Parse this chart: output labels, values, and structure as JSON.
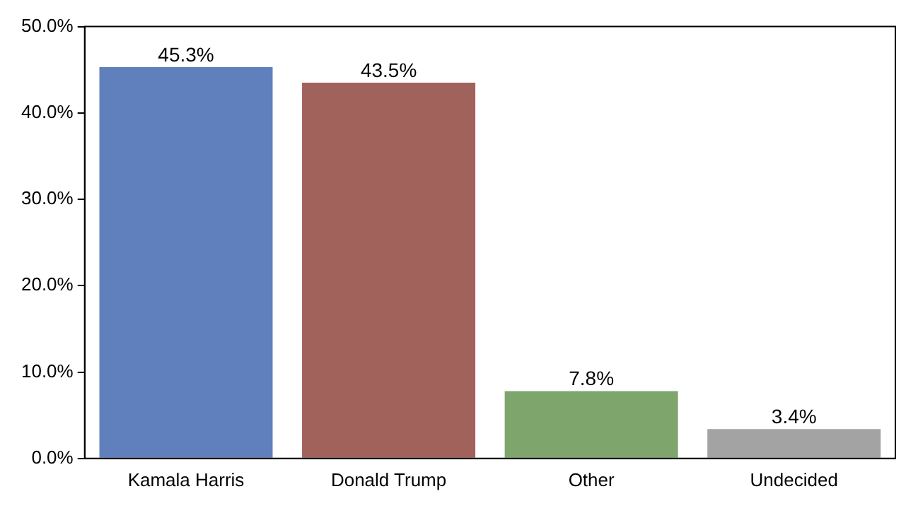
{
  "chart_data": {
    "type": "bar",
    "categories": [
      "Kamala Harris",
      "Donald Trump",
      "Other",
      "Undecided"
    ],
    "values": [
      45.3,
      43.5,
      7.8,
      3.4
    ],
    "colors": [
      "#6080bd",
      "#a2625c",
      "#7ea66c",
      "#a3a3a3"
    ],
    "value_labels": [
      "45.3%",
      "43.5%",
      "7.8%",
      "3.4%"
    ],
    "ylim": [
      0,
      50
    ],
    "yticks": [
      {
        "value": 0,
        "label": "0.0%"
      },
      {
        "value": 10,
        "label": "10.0%"
      },
      {
        "value": 20,
        "label": "20.0%"
      },
      {
        "value": 30,
        "label": "30.0%"
      },
      {
        "value": 40,
        "label": "40.0%"
      },
      {
        "value": 50,
        "label": "50.0%"
      }
    ],
    "grid": false
  }
}
